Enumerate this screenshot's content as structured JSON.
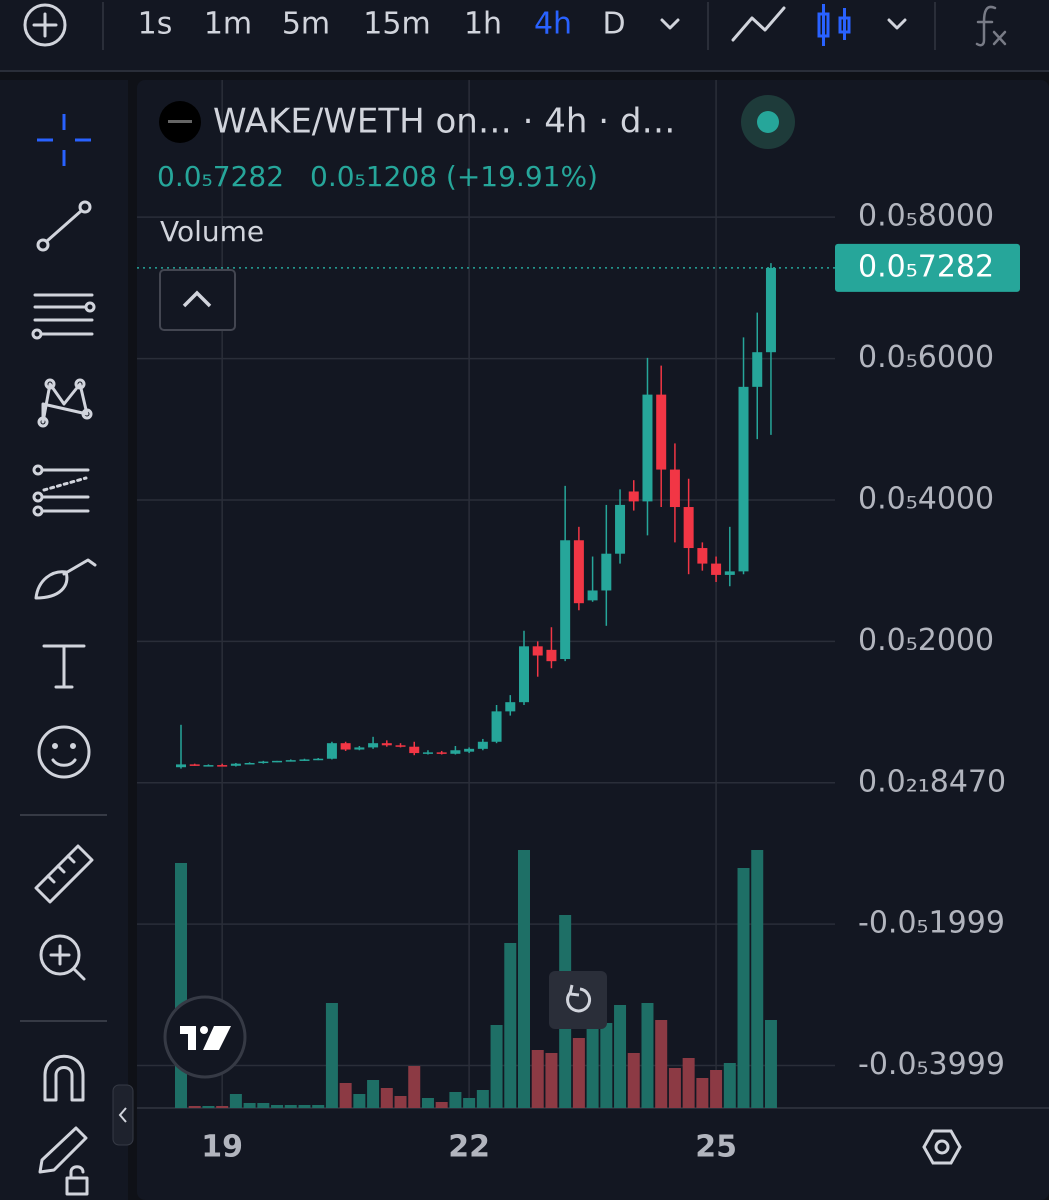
{
  "toolbar": {
    "intervals": [
      "1s",
      "1m",
      "5m",
      "15m",
      "1h",
      "4h",
      "D"
    ],
    "active_interval": 5
  },
  "chart_data": {
    "type": "candlestick",
    "title": "WAKE/WETH on… · 4h · d…",
    "legend_close": "0.0₅7282",
    "legend_change": "0.0₅1208 (+19.91%)",
    "volume_label": "Volume",
    "last_price_label": "0.0₅7282",
    "categories": [
      null,
      null,
      null,
      "19",
      null,
      null,
      null,
      null,
      null,
      null,
      null,
      null,
      null,
      null,
      null,
      null,
      null,
      null,
      null,
      null,
      null,
      "22",
      null,
      null,
      null,
      null,
      null,
      null,
      null,
      null,
      null,
      null,
      null,
      null,
      null,
      null,
      null,
      null,
      null,
      "25",
      null,
      null,
      null,
      null
    ],
    "open": [
      2.2e-07,
      2.6e-07,
      2.5e-07,
      2.5e-07,
      2.4e-07,
      2.7e-07,
      2.8e-07,
      3e-07,
      3.1e-07,
      3.2e-07,
      3.3e-07,
      3.4e-07,
      5.6e-07,
      4.7e-07,
      5e-07,
      5.6e-07,
      5.3e-07,
      5.1e-07,
      4.2e-07,
      4.3e-07,
      4.1e-07,
      4.4e-07,
      4.8e-07,
      5.8e-07,
      1.01e-06,
      1.14e-06,
      1.93e-06,
      1.88e-06,
      1.75e-06,
      3.43e-06,
      2.58e-06,
      2.72e-06,
      3.24e-06,
      4.12e-06,
      3.98e-06,
      5.49e-06,
      4.43e-06,
      3.9e-06,
      3.32e-06,
      3.1e-06,
      2.94e-06,
      2.99e-06,
      5.6e-06,
      6.09e-06
    ],
    "high": [
      8.2e-07,
      2.7e-07,
      2.6e-07,
      2.7e-07,
      2.8e-07,
      2.9e-07,
      3.1e-07,
      3.1e-07,
      3.3e-07,
      3.4e-07,
      3.5e-07,
      5.8e-07,
      5.8e-07,
      5.2e-07,
      6.5e-07,
      6e-07,
      5.6e-07,
      5.8e-07,
      4.6e-07,
      4.5e-07,
      5.2e-07,
      5e-07,
      6.2e-07,
      1.1e-06,
      1.24e-06,
      2.15e-06,
      2e-06,
      2.2e-06,
      4.2e-06,
      3.62e-06,
      3.2e-06,
      3.93e-06,
      4.15e-06,
      4.28e-06,
      6.01e-06,
      5.9e-06,
      4.8e-06,
      4.3e-06,
      3.4e-06,
      3.2e-06,
      3.62e-06,
      6.3e-06,
      6.65e-06,
      7.35e-06
    ],
    "low": [
      2e-07,
      2.4e-07,
      2.4e-07,
      2.3e-07,
      2.3e-07,
      2.6e-07,
      2.7e-07,
      2.9e-07,
      3e-07,
      3.1e-07,
      3.2e-07,
      3.3e-07,
      4.5e-07,
      4.6e-07,
      4.8e-07,
      5.1e-07,
      5e-07,
      3.9e-07,
      4e-07,
      4e-07,
      4e-07,
      4.2e-07,
      4.6e-07,
      5.6e-07,
      9.5e-07,
      1.1e-06,
      1.5e-06,
      1.62e-06,
      1.72e-06,
      2.44e-06,
      2.56e-06,
      2.22e-06,
      3.1e-06,
      3.85e-06,
      3.5e-06,
      3.9e-06,
      3.4e-06,
      2.95e-06,
      3e-06,
      2.84e-06,
      2.78e-06,
      2.95e-06,
      4.86e-06,
      4.92e-06
    ],
    "close": [
      2.6e-07,
      2.5e-07,
      2.5e-07,
      2.4e-07,
      2.7e-07,
      2.8e-07,
      3e-07,
      3.1e-07,
      3.2e-07,
      3.3e-07,
      3.4e-07,
      5.6e-07,
      4.7e-07,
      5e-07,
      5.6e-07,
      5.3e-07,
      5.1e-07,
      4.2e-07,
      4.3e-07,
      4.1e-07,
      4.6e-07,
      4.8e-07,
      5.8e-07,
      1.01e-06,
      1.14e-06,
      1.93e-06,
      1.8e-06,
      1.72e-06,
      3.43e-06,
      2.54e-06,
      2.72e-06,
      3.24e-06,
      3.93e-06,
      3.98e-06,
      5.49e-06,
      4.43e-06,
      3.9e-06,
      3.32e-06,
      3.1e-06,
      2.94e-06,
      2.99e-06,
      5.6e-06,
      6.09e-06,
      7.282e-06
    ],
    "volume": [
      245,
      2,
      2,
      2,
      14,
      5,
      5,
      3,
      3,
      3,
      3,
      105,
      25,
      14,
      28,
      20,
      12,
      42,
      10,
      6,
      16,
      10,
      18,
      83,
      165,
      258,
      58,
      55,
      193,
      70,
      95,
      85,
      103,
      55,
      105,
      88,
      40,
      50,
      30,
      38,
      45,
      240,
      258,
      88
    ],
    "up_color": "#26a69a",
    "down_color": "#f23645",
    "volume_up_color": "#1e6f66",
    "volume_down_color": "#8c3a44",
    "ylim": [
      -4.6e-06,
      9.94e-06
    ],
    "yticks": [
      {
        "value": 8e-06,
        "label": "0.0₅8000"
      },
      {
        "value": 6e-06,
        "label": "0.0₅6000"
      },
      {
        "value": 4e-06,
        "label": "0.0₅4000"
      },
      {
        "value": 2e-06,
        "label": "0.0₅2000"
      },
      {
        "value": 8.47e-22,
        "label": "0.0₂₁8470"
      },
      {
        "value": -1.999e-06,
        "label": "-0.0₅1999"
      },
      {
        "value": -3.999e-06,
        "label": "-0.0₅3999"
      }
    ],
    "grid": true
  }
}
